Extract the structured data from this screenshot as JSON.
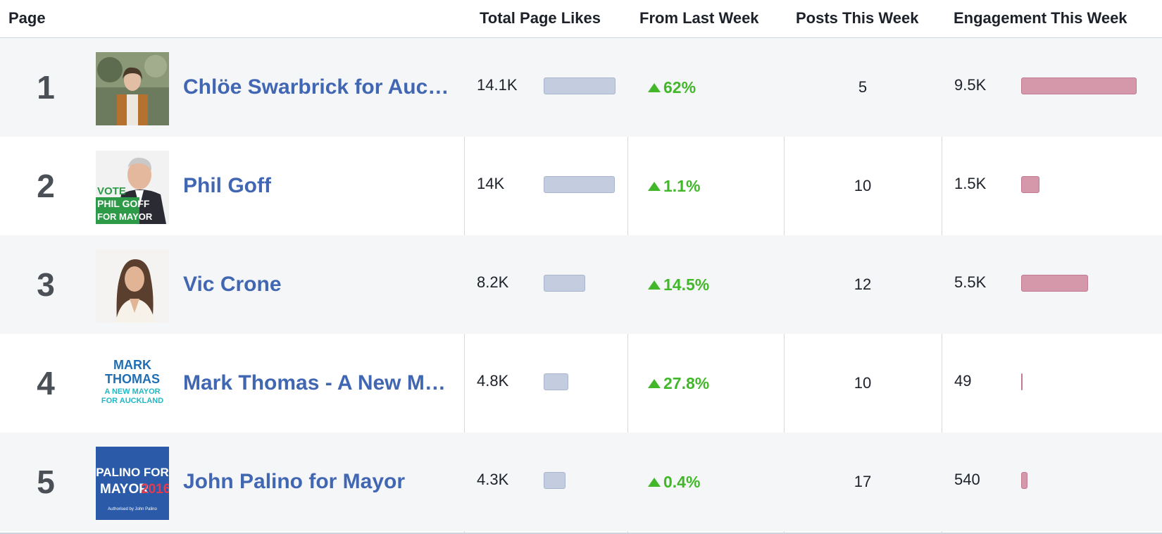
{
  "header": {
    "page": "Page",
    "total_likes": "Total Page Likes",
    "from_last_week": "From Last Week",
    "posts_this_week": "Posts This Week",
    "engagement_this_week": "Engagement This Week"
  },
  "colors": {
    "link": "#4267b2",
    "positive": "#42b72a",
    "likes_bar": "#c4cde0",
    "engagement_bar": "#d597aa"
  },
  "rows": [
    {
      "rank": "1",
      "name": "Chlöe Swarbrick for Auckland Mayor",
      "likes": "14.1K",
      "likes_value": 14100,
      "change": "62%",
      "posts": "5",
      "engagement": "9.5K",
      "engagement_value": 9500,
      "thumb_text": []
    },
    {
      "rank": "2",
      "name": "Phil Goff",
      "likes": "14K",
      "likes_value": 14000,
      "change": "1.1%",
      "posts": "10",
      "engagement": "1.5K",
      "engagement_value": 1500,
      "thumb_text": [
        "VOTE",
        "PHIL GOFF",
        "FOR MAYOR"
      ]
    },
    {
      "rank": "3",
      "name": "Vic Crone",
      "likes": "8.2K",
      "likes_value": 8200,
      "change": "14.5%",
      "posts": "12",
      "engagement": "5.5K",
      "engagement_value": 5500,
      "thumb_text": []
    },
    {
      "rank": "4",
      "name": "Mark Thomas - A New Mayor for Auckland",
      "likes": "4.8K",
      "likes_value": 4800,
      "change": "27.8%",
      "posts": "10",
      "engagement": "49",
      "engagement_value": 49,
      "thumb_text": [
        "MARK",
        "THOMAS",
        "A NEW MAYOR",
        "FOR AUCKLAND"
      ]
    },
    {
      "rank": "5",
      "name": "John Palino for Mayor",
      "likes": "4.3K",
      "likes_value": 4300,
      "change": "0.4%",
      "posts": "17",
      "engagement": "540",
      "engagement_value": 540,
      "thumb_text": [
        "PALINO FOR",
        "MAYOR",
        "2016",
        "Authorised by John Palino"
      ]
    }
  ]
}
